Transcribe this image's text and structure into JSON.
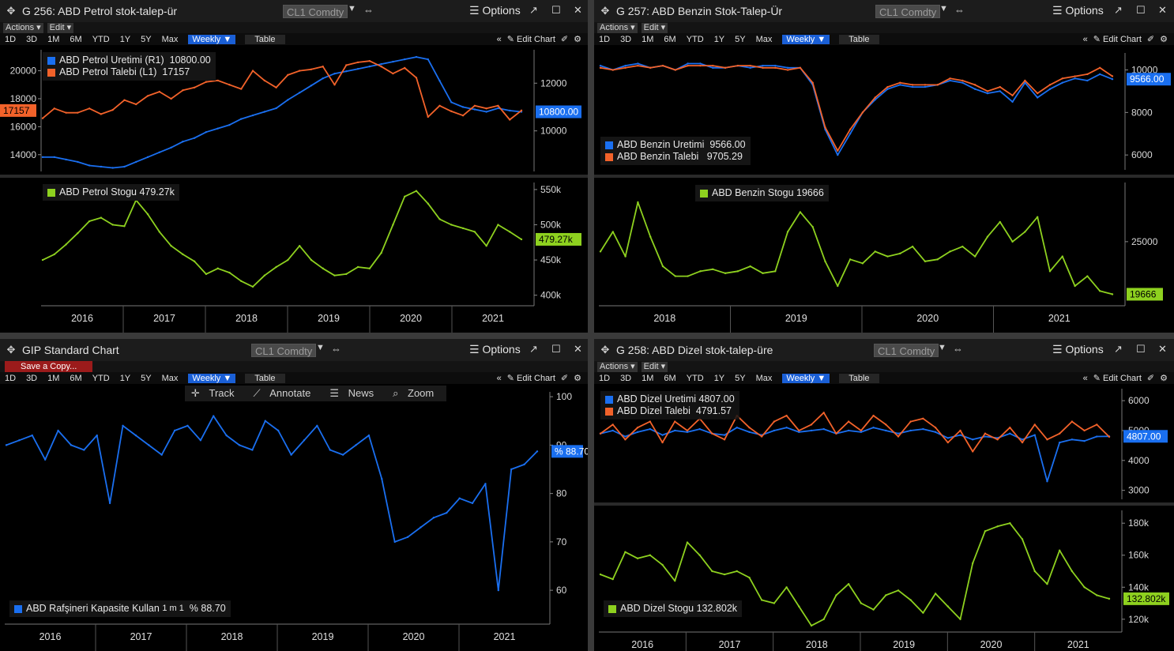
{
  "colors": {
    "blue": "#1a6ff0",
    "orange": "#f2622a",
    "green": "#8ed11f",
    "grid": "#2a2a2a",
    "bg": "#000000"
  },
  "toolbar": {
    "actions": "Actions ▾",
    "edit": "Edit ▾",
    "ranges": [
      "1D",
      "3D",
      "1M",
      "6M",
      "YTD",
      "1Y",
      "5Y",
      "Max"
    ],
    "weekly": "Weekly ▼",
    "table": "Table",
    "edit_chart": "Edit Chart",
    "options": "Options",
    "ticker": "CL1 Comdty",
    "save_copy": "Save a Copy..."
  },
  "tools": {
    "track": "Track",
    "annotate": "Annotate",
    "news": "News",
    "zoom": "Zoom"
  },
  "panels": {
    "p1": {
      "title": "G 256: ABD Petrol stok-talep-ür"
    },
    "p2": {
      "title": "G 257: ABD Benzin Stok-Talep-Ür"
    },
    "p3": {
      "title": "GIP Standard Chart"
    },
    "p4": {
      "title": "G 258: ABD Dizel stok-talep-üre"
    }
  },
  "chart_data": [
    {
      "id": "c1a",
      "type": "line",
      "title": "",
      "series": [
        {
          "name": "ABD Petrol Uretimi (R1)",
          "last": "10800.00",
          "axis": "right",
          "values": [
            8900,
            8900,
            8800,
            8700,
            8550,
            8500,
            8450,
            8500,
            8700,
            8900,
            9100,
            9300,
            9550,
            9700,
            9950,
            10100,
            10250,
            10500,
            10650,
            10800,
            10950,
            11300,
            11600,
            11900,
            12200,
            12400,
            12500,
            12600,
            12700,
            12800,
            12900,
            13000,
            13100,
            13000,
            12100,
            11200,
            11000,
            10900,
            10800,
            10950,
            10850,
            10800
          ]
        },
        {
          "name": "ABD Petrol Talebi (L1)",
          "last": "17157",
          "axis": "left",
          "values": [
            16600,
            17300,
            17000,
            17000,
            17300,
            16900,
            17200,
            17900,
            17600,
            18200,
            18500,
            18000,
            18600,
            18800,
            19200,
            19300,
            19000,
            18700,
            20000,
            19300,
            18800,
            19700,
            20000,
            20100,
            20300,
            19000,
            20400,
            20600,
            20700,
            20300,
            19800,
            20200,
            19500,
            16700,
            17500,
            17100,
            16800,
            17500,
            17300,
            17500,
            16500,
            17157
          ]
        }
      ],
      "yticks_left": [
        "20000",
        "18000",
        "16000",
        "14000"
      ],
      "yticks_right": [
        "12000",
        "10000"
      ],
      "ylim_left": [
        12800,
        21500
      ],
      "ylim_right": [
        8300,
        13400
      ]
    },
    {
      "id": "c1b",
      "type": "line",
      "series": [
        {
          "name": "ABD Petrol Stogu",
          "last": "479.27k",
          "values": [
            450,
            458,
            472,
            488,
            505,
            510,
            500,
            498,
            535,
            515,
            490,
            470,
            458,
            448,
            430,
            438,
            432,
            420,
            412,
            428,
            440,
            450,
            470,
            450,
            438,
            428,
            430,
            440,
            438,
            460,
            500,
            540,
            548,
            530,
            508,
            500,
            495,
            490,
            470,
            500,
            490,
            479.27
          ]
        }
      ],
      "yticks": [
        "550k",
        "500k",
        "450k",
        "400k"
      ],
      "ylim": [
        385,
        560
      ],
      "xticks": [
        "2016",
        "2017",
        "2018",
        "2019",
        "2020",
        "2021"
      ]
    },
    {
      "id": "c2a",
      "type": "line",
      "series": [
        {
          "name": "ABD Benzin Uretimi",
          "last": "9566.00",
          "values": [
            10200,
            10000,
            10200,
            10300,
            10100,
            10200,
            10000,
            10300,
            10300,
            10100,
            10100,
            10200,
            10100,
            10200,
            10200,
            10100,
            10100,
            9300,
            7200,
            6000,
            7000,
            8000,
            8600,
            9100,
            9300,
            9200,
            9200,
            9300,
            9500,
            9400,
            9100,
            8900,
            9000,
            8500,
            9400,
            8700,
            9100,
            9400,
            9600,
            9500,
            9800,
            9566
          ]
        },
        {
          "name": "ABD Benzin Talebi",
          "last": "9705.29",
          "values": [
            10100,
            10000,
            10100,
            10200,
            10100,
            10200,
            10000,
            10200,
            10200,
            10200,
            10100,
            10200,
            10200,
            10100,
            10100,
            10000,
            10100,
            9400,
            7300,
            6200,
            7200,
            8000,
            8700,
            9200,
            9400,
            9300,
            9300,
            9300,
            9600,
            9500,
            9300,
            9000,
            9200,
            8800,
            9500,
            8900,
            9300,
            9600,
            9700,
            9800,
            10100,
            9705.29
          ]
        }
      ],
      "yticks": [
        "10000",
        "8000",
        "6000"
      ],
      "ylim": [
        5300,
        10800
      ]
    },
    {
      "id": "c2b",
      "type": "line",
      "series": [
        {
          "name": "ABD Benzin Stogu",
          "last": "19666",
          "values": [
            24000,
            26000,
            23500,
            29000,
            25500,
            22500,
            21500,
            21500,
            22000,
            22200,
            21800,
            22000,
            22500,
            21800,
            22000,
            26000,
            28000,
            26500,
            23000,
            20500,
            23200,
            22800,
            24000,
            23500,
            23800,
            24500,
            23000,
            23200,
            24000,
            24500,
            23500,
            25500,
            27000,
            25000,
            26000,
            27500,
            22000,
            23500,
            20500,
            21500,
            20000,
            19666
          ]
        }
      ],
      "yticks": [
        "25000"
      ],
      "ylim": [
        18500,
        31000
      ],
      "xticks": [
        "2018",
        "2019",
        "2020",
        "2021"
      ]
    },
    {
      "id": "c3",
      "type": "line",
      "series": [
        {
          "name": "ABD Rafşineri Kapasite Kullan",
          "suffix": "1 m 1",
          "last": "% 88.70",
          "values": [
            90,
            91,
            92,
            87,
            93,
            90,
            89,
            92,
            78,
            94,
            92,
            90,
            88,
            93,
            94,
            91,
            96,
            92,
            90,
            89,
            95,
            93,
            88,
            91,
            94,
            89,
            88,
            90,
            92,
            83,
            70,
            71,
            73,
            75,
            76,
            79,
            78,
            82,
            60,
            85,
            86,
            88.7
          ]
        }
      ],
      "yticks": [
        "100",
        "90",
        "80",
        "70",
        "60"
      ],
      "ylim": [
        53,
        101
      ],
      "xticks": [
        "2016",
        "2017",
        "2018",
        "2019",
        "2020",
        "2021"
      ]
    },
    {
      "id": "c4a",
      "type": "line",
      "series": [
        {
          "name": "ABD Dizel Uretimi",
          "last": "4807.00",
          "values": [
            4900,
            5000,
            4800,
            4950,
            5050,
            4850,
            5000,
            4950,
            5050,
            4900,
            4850,
            5100,
            4950,
            4850,
            5000,
            5100,
            4950,
            5000,
            5050,
            4900,
            5000,
            4950,
            5100,
            5000,
            4900,
            5000,
            5050,
            4950,
            4750,
            4850,
            4700,
            4800,
            4750,
            4900,
            4700,
            4850,
            3300,
            4600,
            4700,
            4650,
            4800,
            4807
          ]
        },
        {
          "name": "ABD Dizel Talebi",
          "last": "4791.57",
          "values": [
            4900,
            5200,
            4700,
            5100,
            5300,
            4600,
            5300,
            5000,
            5400,
            4900,
            4700,
            5500,
            5100,
            4800,
            5300,
            5500,
            5000,
            5200,
            5600,
            4900,
            5300,
            5000,
            5500,
            5200,
            4800,
            5300,
            5400,
            5100,
            4600,
            5000,
            4300,
            4900,
            4700,
            5100,
            4600,
            5200,
            4700,
            4900,
            5300,
            5000,
            5200,
            4791.57
          ]
        }
      ],
      "yticks": [
        "6000",
        "5000",
        "4000",
        "3000"
      ],
      "ylim": [
        2700,
        6400
      ]
    },
    {
      "id": "c4b",
      "type": "line",
      "series": [
        {
          "name": "ABD Dizel Stogu",
          "last": "132.802k",
          "values": [
            148,
            145,
            162,
            158,
            160,
            154,
            144,
            168,
            160,
            150,
            148,
            150,
            146,
            132,
            130,
            140,
            128,
            116,
            120,
            135,
            142,
            130,
            126,
            135,
            138,
            132,
            124,
            136,
            128,
            120,
            155,
            175,
            178,
            180,
            170,
            150,
            142,
            163,
            150,
            140,
            135,
            132.8
          ]
        }
      ],
      "yticks": [
        "180k",
        "160k",
        "140k",
        "120k"
      ],
      "ylim": [
        112,
        188
      ],
      "xticks": [
        "2016",
        "2017",
        "2018",
        "2019",
        "2020",
        "2021"
      ]
    }
  ]
}
